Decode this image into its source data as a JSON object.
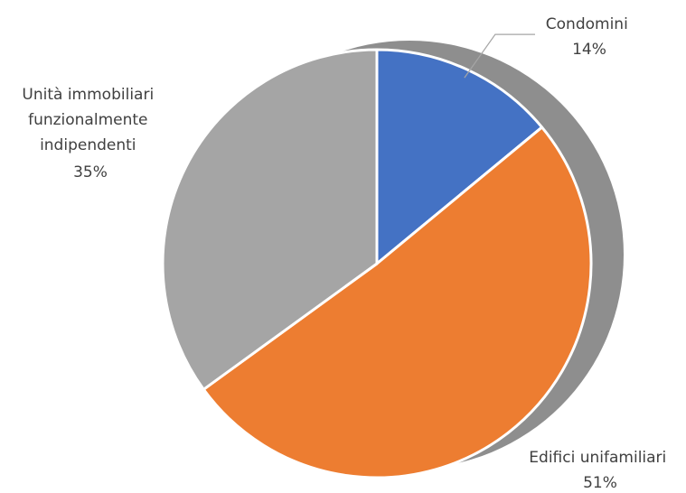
{
  "chart_data": {
    "type": "pie",
    "title": "",
    "slices": [
      {
        "label": "Condomini",
        "value": 14,
        "value_label": "14%",
        "color": "#4472C4"
      },
      {
        "label": "Edifici unifamiliari",
        "value": 51,
        "value_label": "51%",
        "color": "#ED7D31"
      },
      {
        "label": "Unità immobiliari funzionalmente indipendenti",
        "value": 35,
        "value_label": "35%",
        "color": "#A5A5A5"
      }
    ],
    "legend": "none",
    "start_angle": "12 o'clock",
    "direction": "clockwise",
    "shadow_color": "#7A7A7A",
    "border_color": "#FFFFFF"
  }
}
